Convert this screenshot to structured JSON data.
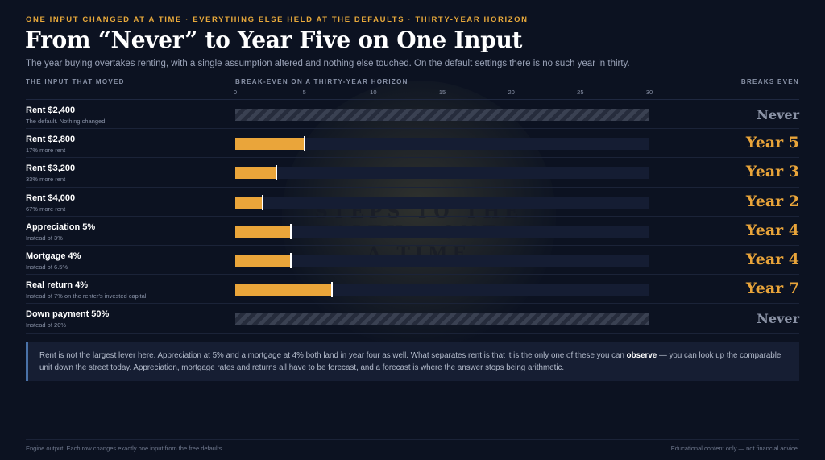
{
  "eyebrow": "ONE INPUT CHANGED AT A TIME · EVERYTHING ELSE HELD AT THE DEFAULTS · THIRTY-YEAR HORIZON",
  "title": "From “Never” to Year Five on One Input",
  "subtitle": "The year buying overtakes renting, with a single assumption altered and nothing else touched. On the default settings there is no such year in thirty.",
  "watermark_text": "STEPS TO THE WEALTH · ONE AT A TIME",
  "headers": {
    "input": "THE INPUT THAT MOVED",
    "axis": "BREAK-EVEN ON A THIRTY-YEAR HORIZON",
    "outcome": "BREAKS EVEN"
  },
  "colors": {
    "accent": "#eaa53a",
    "background": "#0c1221",
    "never": "#8b93a6",
    "note_border": "#4a72a8"
  },
  "chart_data": {
    "type": "bar",
    "orientation": "horizontal",
    "xlim": [
      0,
      30
    ],
    "xticks": [
      0,
      5,
      10,
      15,
      20,
      25,
      30
    ],
    "rows": [
      {
        "label": "Rent $2,400",
        "sub": "The default. Nothing changed.",
        "value": null,
        "outcome": "Never"
      },
      {
        "label": "Rent $2,800",
        "sub": "17% more rent",
        "value": 5,
        "outcome": "Year 5"
      },
      {
        "label": "Rent $3,200",
        "sub": "33% more rent",
        "value": 3,
        "outcome": "Year 3"
      },
      {
        "label": "Rent $4,000",
        "sub": "67% more rent",
        "value": 2,
        "outcome": "Year 2"
      },
      {
        "label": "Appreciation 5%",
        "sub": "Instead of 3%",
        "value": 4,
        "outcome": "Year 4"
      },
      {
        "label": "Mortgage 4%",
        "sub": "Instead of 6.5%",
        "value": 4,
        "outcome": "Year 4"
      },
      {
        "label": "Real return 4%",
        "sub": "Instead of 7% on the renter's invested capital",
        "value": 7,
        "outcome": "Year 7"
      },
      {
        "label": "Down payment 50%",
        "sub": "Instead of 20%",
        "value": null,
        "outcome": "Never"
      }
    ]
  },
  "note": {
    "before": "Rent is not the largest lever here. Appreciation at 5% and a mortgage at 4% both land in year four as well. What separates rent is that it is the only one of these you can ",
    "emphasis": "observe",
    "after": " — you can look up the comparable unit down the street today. Appreciation, mortgage rates and returns all have to be forecast, and a forecast is where the answer stops being arithmetic."
  },
  "footer": {
    "left": "Engine output. Each row changes exactly one input from the free defaults.",
    "right": "Educational content only — not financial advice."
  }
}
